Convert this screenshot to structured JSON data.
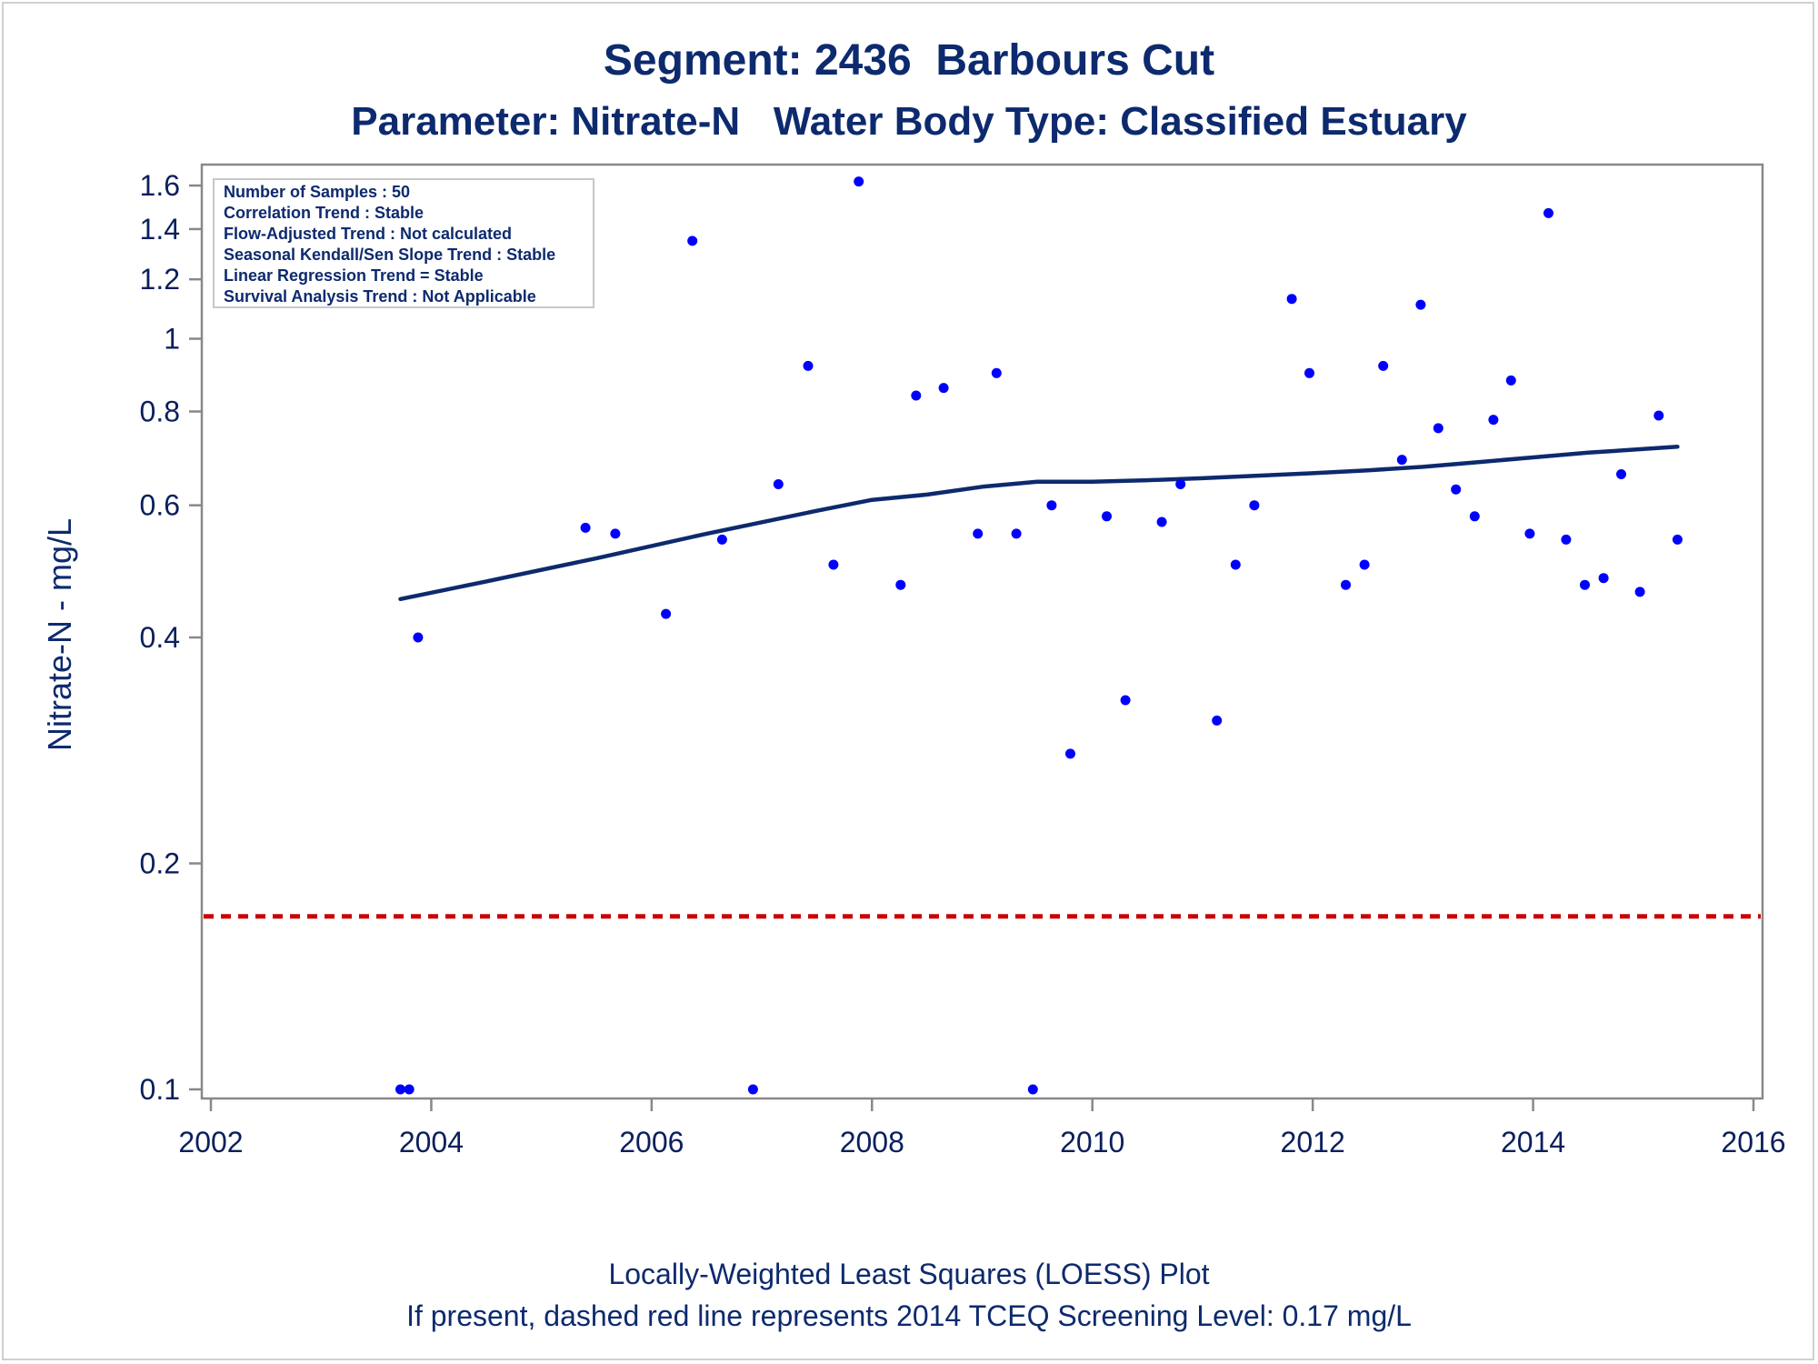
{
  "colors": {
    "title": "#0d2a6e",
    "text": "#0a1f5c",
    "axis": "#888888",
    "points": "#0000ff",
    "loess": "#0d2a6e",
    "screening": "#cc0000",
    "frame": "#cfcfcf"
  },
  "chart_data": {
    "type": "scatter",
    "title": "Segment: 2436  Barbours Cut",
    "subtitle": "Parameter: Nitrate-N   Water Body Type: Classified Estuary",
    "xlabel": "",
    "ylabel": "Nitrate-N - mg/L",
    "y_scale": "log",
    "xlim": [
      2002,
      2016
    ],
    "ylim": [
      0.1,
      1.65
    ],
    "x_ticks": [
      2002,
      2004,
      2006,
      2008,
      2010,
      2012,
      2014,
      2016
    ],
    "y_ticks": [
      0.1,
      0.2,
      0.4,
      0.6,
      0.8,
      1,
      1.2,
      1.4,
      1.6
    ],
    "y_tick_labels": [
      "0.1",
      "0.2",
      "0.4",
      "0.6",
      "0.8",
      "1",
      "1.2",
      "1.4",
      "1.6"
    ],
    "grid": false,
    "legend": "none",
    "stats_box": {
      "placement": "top-left",
      "lines": [
        "Number of Samples : 50",
        "Correlation Trend : Stable",
        "Flow-Adjusted Trend : Not calculated",
        "Seasonal Kendall/Sen Slope Trend : Stable",
        "Linear Regression Trend = Stable",
        "Survival Analysis Trend : Not Applicable"
      ]
    },
    "samples": [
      {
        "x": 2003.72,
        "y": 0.1
      },
      {
        "x": 2003.8,
        "y": 0.1
      },
      {
        "x": 2003.88,
        "y": 0.4
      },
      {
        "x": 2005.4,
        "y": 0.56
      },
      {
        "x": 2005.67,
        "y": 0.55
      },
      {
        "x": 2006.13,
        "y": 0.43
      },
      {
        "x": 2006.37,
        "y": 1.35
      },
      {
        "x": 2006.64,
        "y": 0.54
      },
      {
        "x": 2006.92,
        "y": 0.1
      },
      {
        "x": 2007.15,
        "y": 0.64
      },
      {
        "x": 2007.42,
        "y": 0.92
      },
      {
        "x": 2007.65,
        "y": 0.5
      },
      {
        "x": 2007.88,
        "y": 1.62
      },
      {
        "x": 2008.26,
        "y": 0.47
      },
      {
        "x": 2008.4,
        "y": 0.84
      },
      {
        "x": 2008.65,
        "y": 0.86
      },
      {
        "x": 2008.96,
        "y": 0.55
      },
      {
        "x": 2009.13,
        "y": 0.9
      },
      {
        "x": 2009.31,
        "y": 0.55
      },
      {
        "x": 2009.46,
        "y": 0.1
      },
      {
        "x": 2009.63,
        "y": 0.6
      },
      {
        "x": 2009.8,
        "y": 0.28
      },
      {
        "x": 2010.13,
        "y": 0.58
      },
      {
        "x": 2010.3,
        "y": 0.33
      },
      {
        "x": 2010.63,
        "y": 0.57
      },
      {
        "x": 2010.8,
        "y": 0.64
      },
      {
        "x": 2011.13,
        "y": 0.31
      },
      {
        "x": 2011.3,
        "y": 0.5
      },
      {
        "x": 2011.47,
        "y": 0.6
      },
      {
        "x": 2011.81,
        "y": 1.13
      },
      {
        "x": 2011.97,
        "y": 0.9
      },
      {
        "x": 2012.3,
        "y": 0.47
      },
      {
        "x": 2012.47,
        "y": 0.5
      },
      {
        "x": 2012.64,
        "y": 0.92
      },
      {
        "x": 2012.81,
        "y": 0.69
      },
      {
        "x": 2012.98,
        "y": 1.11
      },
      {
        "x": 2013.14,
        "y": 0.76
      },
      {
        "x": 2013.3,
        "y": 0.63
      },
      {
        "x": 2013.47,
        "y": 0.58
      },
      {
        "x": 2013.64,
        "y": 0.78
      },
      {
        "x": 2013.8,
        "y": 0.88
      },
      {
        "x": 2013.97,
        "y": 0.55
      },
      {
        "x": 2014.14,
        "y": 1.47
      },
      {
        "x": 2014.3,
        "y": 0.54
      },
      {
        "x": 2014.47,
        "y": 0.47
      },
      {
        "x": 2014.64,
        "y": 0.48
      },
      {
        "x": 2014.8,
        "y": 0.66
      },
      {
        "x": 2014.97,
        "y": 0.46
      },
      {
        "x": 2015.14,
        "y": 0.79
      },
      {
        "x": 2015.31,
        "y": 0.54
      }
    ],
    "loess_curve": [
      {
        "x": 2003.72,
        "y": 0.45
      },
      {
        "x": 2004.5,
        "y": 0.475
      },
      {
        "x": 2005.5,
        "y": 0.51
      },
      {
        "x": 2006.5,
        "y": 0.55
      },
      {
        "x": 2007.5,
        "y": 0.59
      },
      {
        "x": 2008.0,
        "y": 0.61
      },
      {
        "x": 2008.5,
        "y": 0.62
      },
      {
        "x": 2009.0,
        "y": 0.635
      },
      {
        "x": 2009.5,
        "y": 0.645
      },
      {
        "x": 2010.0,
        "y": 0.645
      },
      {
        "x": 2010.5,
        "y": 0.648
      },
      {
        "x": 2011.0,
        "y": 0.652
      },
      {
        "x": 2011.5,
        "y": 0.657
      },
      {
        "x": 2012.0,
        "y": 0.662
      },
      {
        "x": 2012.5,
        "y": 0.668
      },
      {
        "x": 2013.0,
        "y": 0.675
      },
      {
        "x": 2013.5,
        "y": 0.685
      },
      {
        "x": 2014.0,
        "y": 0.695
      },
      {
        "x": 2014.5,
        "y": 0.705
      },
      {
        "x": 2015.31,
        "y": 0.718
      }
    ],
    "screening_level": {
      "y": 0.17
    },
    "footnotes": [
      "Locally-Weighted Least Squares (LOESS) Plot",
      "If present, dashed red line represents 2014 TCEQ Screening Level: 0.17 mg/L"
    ]
  }
}
